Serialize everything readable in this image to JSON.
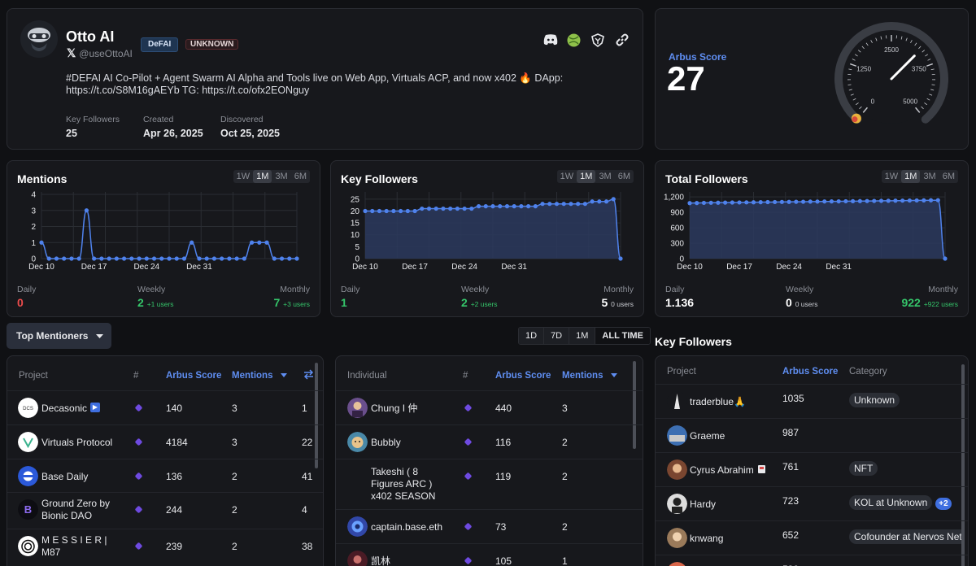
{
  "profile": {
    "name": "Otto AI",
    "handle": "@useOttoAI",
    "tags": [
      "DeFAI",
      "UNKNOWN"
    ],
    "description": "#DEFAI AI Co-Pilot + Agent Swarm AI Alpha and Tools live on Web App, Virtuals ACP, and now x402 🔥 DApp: https://t.co/S8M16gAEYb TG: https://t.co/ofx2EONguy",
    "meta": [
      {
        "label": "Key Followers",
        "value": "25"
      },
      {
        "label": "Created",
        "value": "Apr 26, 2025"
      },
      {
        "label": "Discovered",
        "value": "Oct 25, 2025"
      }
    ],
    "social_icons": [
      "discord-icon",
      "ball-icon",
      "shield-icon",
      "link-icon"
    ]
  },
  "score": {
    "label": "Arbus Score",
    "value": "27",
    "gauge_value": 27,
    "gauge_max": 5000,
    "gauge_ticks": [
      "0",
      "1250",
      "2500",
      "3750",
      "5000"
    ]
  },
  "timeframes": [
    "1W",
    "1M",
    "3M",
    "6M"
  ],
  "active_timeframe": "1M",
  "metrics": [
    {
      "title": "Mentions",
      "chart_data": {
        "type": "line",
        "x_ticks": [
          "Dec 10",
          "Dec 17",
          "Dec 24",
          "Dec 31"
        ],
        "y_ticks": [
          "0",
          "1",
          "2",
          "3",
          "4"
        ],
        "ylim": [
          0,
          4
        ],
        "values": [
          1,
          0,
          0,
          0,
          0,
          0,
          3,
          0,
          0,
          0,
          0,
          0,
          0,
          0,
          0,
          0,
          0,
          0,
          0,
          0,
          1,
          0,
          0,
          0,
          0,
          0,
          0,
          0,
          1,
          1,
          1,
          0,
          0,
          0,
          0
        ]
      },
      "stats": {
        "daily_label": "Daily",
        "daily": "0",
        "daily_color": "#ec4c4c",
        "weekly_label": "Weekly",
        "weekly": "2",
        "weekly_sub": "+1 users",
        "weekly_color": "#35c56a",
        "monthly_label": "Monthly",
        "monthly": "7",
        "monthly_sub": "+3 users",
        "monthly_color": "#35c56a"
      }
    },
    {
      "title": "Key Followers",
      "chart_data": {
        "type": "area",
        "x_ticks": [
          "Dec 10",
          "Dec 17",
          "Dec 24",
          "Dec 31"
        ],
        "y_ticks": [
          "0",
          "5",
          "10",
          "15",
          "20",
          "25"
        ],
        "ylim": [
          0,
          27
        ],
        "values": [
          20,
          20,
          20,
          20,
          20,
          20,
          20,
          20,
          21,
          21,
          21,
          21,
          21,
          21,
          21,
          21,
          22,
          22,
          22,
          22,
          22,
          22,
          22,
          22,
          22,
          23,
          23,
          23,
          23,
          23,
          23,
          23,
          24,
          24,
          24,
          25,
          0
        ]
      },
      "stats": {
        "daily_label": "Daily",
        "daily": "1",
        "daily_color": "#35c56a",
        "weekly_label": "Weekly",
        "weekly": "2",
        "weekly_sub": "+2 users",
        "weekly_color": "#35c56a",
        "monthly_label": "Monthly",
        "monthly": "5",
        "monthly_sub": "0 users",
        "monthly_color": "#ffffff"
      }
    },
    {
      "title": "Total Followers",
      "chart_data": {
        "type": "area",
        "x_ticks": [
          "Dec 10",
          "Dec 17",
          "Dec 24",
          "Dec 31"
        ],
        "y_ticks": [
          "0",
          "300",
          "600",
          "900",
          "1,200"
        ],
        "ylim": [
          0,
          1250
        ],
        "values": [
          1080,
          1082,
          1085,
          1087,
          1088,
          1090,
          1092,
          1093,
          1095,
          1096,
          1098,
          1100,
          1101,
          1103,
          1104,
          1106,
          1107,
          1109,
          1110,
          1112,
          1113,
          1114,
          1116,
          1117,
          1119,
          1120,
          1122,
          1124,
          1125,
          1127,
          1128,
          1130,
          1132,
          1133,
          1135,
          1136,
          0
        ]
      },
      "stats": {
        "daily_label": "Daily",
        "daily": "1.136",
        "daily_color": "#ffffff",
        "weekly_label": "Weekly",
        "weekly": "0",
        "weekly_sub": "0 users",
        "weekly_color": "#ffffff",
        "monthly_label": "Monthly",
        "monthly": "922",
        "monthly_sub": "+922 users",
        "monthly_color": "#35c56a"
      }
    }
  ],
  "mentioners_button": "Top Mentioners",
  "ranges": [
    "1D",
    "7D",
    "1M",
    "ALL TIME"
  ],
  "active_range": "ALL TIME",
  "projects_table": {
    "headers": {
      "project": "Project",
      "hash": "#",
      "score": "Arbus Score",
      "mentions": "Mentions"
    },
    "rows": [
      {
        "name": "Decasonic",
        "score": "140",
        "mentions": "3",
        "extra": "1"
      },
      {
        "name": "Virtuals Protocol",
        "score": "4184",
        "mentions": "3",
        "extra": "22"
      },
      {
        "name": "Base Daily",
        "score": "136",
        "mentions": "2",
        "extra": "41"
      },
      {
        "name": "Ground Zero by Bionic DAO",
        "score": "244",
        "mentions": "2",
        "extra": "4"
      },
      {
        "name": "M E S S I E R | M87",
        "score": "239",
        "mentions": "2",
        "extra": "38"
      }
    ]
  },
  "individuals_table": {
    "headers": {
      "individual": "Individual",
      "hash": "#",
      "score": "Arbus Score",
      "mentions": "Mentions"
    },
    "rows": [
      {
        "name": "Chung I 仲",
        "score": "440",
        "mentions": "3"
      },
      {
        "name": "Bubbly",
        "score": "116",
        "mentions": "2"
      },
      {
        "name": "Takeshi ( 8 Figures ARC ) x402 SEASON",
        "score": "119",
        "mentions": "2"
      },
      {
        "name": "captain.base.eth",
        "score": "73",
        "mentions": "2"
      },
      {
        "name": "凯林",
        "score": "105",
        "mentions": "1"
      }
    ]
  },
  "key_followers_title": "Key Followers",
  "key_followers_table": {
    "headers": {
      "project": "Project",
      "score": "Arbus Score",
      "category": "Category"
    },
    "rows": [
      {
        "name": "traderblue🙏",
        "score": "1035",
        "category": "Unknown",
        "badge": ""
      },
      {
        "name": "Graeme",
        "score": "987",
        "category": "",
        "badge": ""
      },
      {
        "name": "Cyrus Abrahim",
        "score": "761",
        "category": "NFT",
        "badge": ""
      },
      {
        "name": "Hardy",
        "score": "723",
        "category": "KOL at Unknown",
        "badge": "+2"
      },
      {
        "name": "knwang",
        "score": "652",
        "category": "Cofounder at Nervos Net",
        "badge": ""
      },
      {
        "name": "",
        "score": "530",
        "category": "",
        "badge": ""
      }
    ]
  }
}
